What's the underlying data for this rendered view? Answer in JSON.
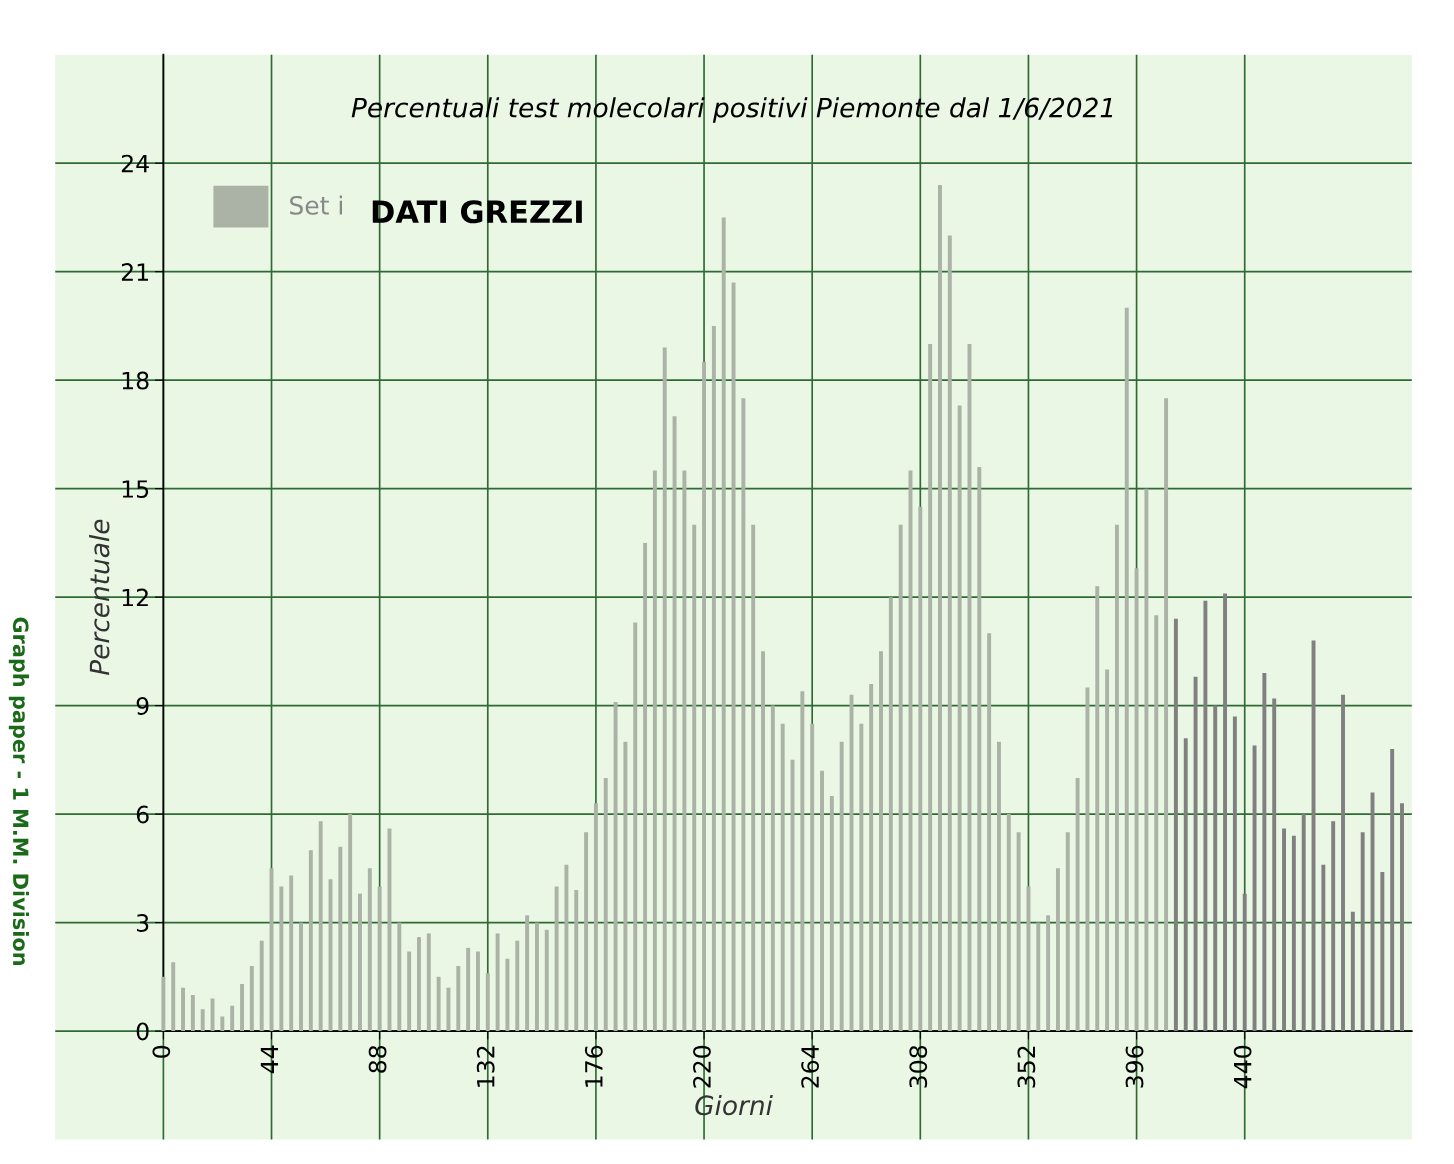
{
  "chart_data": {
    "type": "bar",
    "title": "Percentuali test molecolari positivi Piemonte dal 1/6/2021",
    "xlabel": "Giorni",
    "ylabel": "Percentuale",
    "annotations": [
      "DATI GREZZI",
      "Graph paper - 1 M.M. Division"
    ],
    "x": [
      0,
      4,
      8,
      12,
      16,
      20,
      24,
      28,
      32,
      36,
      40,
      44,
      48,
      52,
      56,
      60,
      64,
      68,
      72,
      76,
      80,
      84,
      88,
      92,
      96,
      100,
      104,
      108,
      112,
      116,
      120,
      124,
      128,
      132,
      136,
      140,
      144,
      148,
      152,
      156,
      160,
      164,
      168,
      172,
      176,
      180,
      184,
      188,
      192,
      196,
      200,
      204,
      208,
      212,
      216,
      220,
      224,
      228,
      232,
      236,
      240,
      244,
      248,
      252,
      256,
      260,
      264,
      268,
      272,
      276,
      280,
      284,
      288,
      292,
      296,
      300,
      304,
      308,
      312,
      316,
      320,
      324,
      328,
      332,
      336,
      340,
      344,
      348,
      352,
      356,
      360,
      364,
      368,
      372,
      376,
      380,
      384,
      388,
      392,
      396,
      400,
      404,
      408,
      412,
      416,
      420,
      424,
      428,
      432,
      436,
      440,
      444,
      448,
      452,
      456,
      460,
      464,
      468,
      472,
      476,
      480,
      484,
      488,
      492,
      496,
      500,
      504
    ],
    "series": [
      {
        "name": "Set i",
        "color": "#aab3a6",
        "values": [
          1.5,
          1.9,
          1.2,
          1.0,
          0.6,
          0.9,
          0.4,
          0.7,
          1.3,
          1.8,
          2.5,
          4.5,
          4.0,
          4.3,
          3.0,
          5.0,
          5.8,
          4.2,
          5.1,
          6.0,
          3.8,
          4.5,
          4.0,
          5.6,
          3.0,
          2.2,
          2.6,
          2.7,
          1.5,
          1.2,
          1.8,
          2.3,
          2.2,
          1.6,
          2.7,
          2.0,
          2.5,
          3.2,
          3.0,
          2.8,
          4.0,
          4.6,
          3.9,
          5.5,
          6.3,
          7.0,
          9.1,
          8.0,
          11.3,
          13.5,
          15.5,
          18.9,
          17.0,
          15.5,
          14.0,
          18.5,
          19.5,
          22.5,
          20.7,
          17.5,
          14.0,
          10.5,
          9.0,
          8.5,
          7.5,
          9.4,
          8.5,
          7.2,
          6.5,
          8.0,
          9.3,
          8.5,
          9.6,
          10.5,
          12.0,
          14.0,
          15.5,
          14.5,
          19.0,
          23.4,
          22.0,
          17.3,
          19.0,
          15.6,
          11.0,
          8.0,
          6.0,
          5.5,
          4.0,
          3.0,
          3.2,
          4.5,
          5.5,
          7.0,
          9.5,
          12.3,
          10.0,
          14.0,
          20.0,
          12.8,
          15.0,
          11.5,
          17.5,
          11.4,
          8.1,
          9.8,
          11.9,
          9.0,
          12.1,
          8.7,
          3.8,
          7.9,
          9.9,
          9.2,
          5.6,
          5.4,
          6.0,
          10.8,
          4.6,
          5.8,
          9.3,
          3.3,
          5.5,
          6.6,
          4.4,
          7.8,
          6.3
        ],
        "colors": [
          "#aab3a6",
          "#aab3a6",
          "#aab3a6",
          "#aab3a6",
          "#aab3a6",
          "#aab3a6",
          "#aab3a6",
          "#aab3a6",
          "#aab3a6",
          "#aab3a6",
          "#aab3a6",
          "#aab3a6",
          "#aab3a6",
          "#aab3a6",
          "#aab3a6",
          "#aab3a6",
          "#aab3a6",
          "#aab3a6",
          "#aab3a6",
          "#aab3a6",
          "#aab3a6",
          "#aab3a6",
          "#aab3a6",
          "#aab3a6",
          "#aab3a6",
          "#aab3a6",
          "#aab3a6",
          "#aab3a6",
          "#aab3a6",
          "#aab3a6",
          "#aab3a6",
          "#aab3a6",
          "#aab3a6",
          "#aab3a6",
          "#aab3a6",
          "#aab3a6",
          "#aab3a6",
          "#aab3a6",
          "#aab3a6",
          "#aab3a6",
          "#aab3a6",
          "#aab3a6",
          "#aab3a6",
          "#aab3a6",
          "#aab3a6",
          "#aab3a6",
          "#aab3a6",
          "#aab3a6",
          "#aab3a6",
          "#aab3a6",
          "#aab3a6",
          "#aab3a6",
          "#aab3a6",
          "#aab3a6",
          "#aab3a6",
          "#aab3a6",
          "#aab3a6",
          "#aab3a6",
          "#aab3a6",
          "#aab3a6",
          "#aab3a6",
          "#aab3a6",
          "#aab3a6",
          "#aab3a6",
          "#aab3a6",
          "#aab3a6",
          "#aab3a6",
          "#aab3a6",
          "#aab3a6",
          "#aab3a6",
          "#aab3a6",
          "#aab3a6",
          "#aab3a6",
          "#aab3a6",
          "#aab3a6",
          "#aab3a6",
          "#aab3a6",
          "#aab3a6",
          "#aab3a6",
          "#aab3a6",
          "#aab3a6",
          "#aab3a6",
          "#aab3a6",
          "#aab3a6",
          "#aab3a6",
          "#aab3a6",
          "#aab3a6",
          "#aab3a6",
          "#aab3a6",
          "#aab3a6",
          "#aab3a6",
          "#aab3a6",
          "#aab3a6",
          "#aab3a6",
          "#aab3a6",
          "#aab3a6",
          "#aab3a6",
          "#aab3a6",
          "#aab3a6",
          "#aab3a6",
          "#aab3a6",
          "#aab3a6",
          "#aab3a6",
          "#808080",
          "#808080",
          "#808080",
          "#808080",
          "#808080",
          "#808080",
          "#808080",
          "#808080",
          "#808080",
          "#808080",
          "#808080",
          "#808080",
          "#808080",
          "#808080",
          "#808080",
          "#808080",
          "#808080",
          "#808080",
          "#808080",
          "#808080",
          "#808080",
          "#808080",
          "#808080",
          "#808080"
        ]
      }
    ],
    "xlim": [
      -44,
      508
    ],
    "ylim": [
      -3,
      27
    ],
    "xticks": [
      0,
      44,
      88,
      132,
      176,
      220,
      264,
      308,
      352,
      396,
      440
    ],
    "yticks": [
      0,
      3,
      6,
      9,
      12,
      15,
      18,
      21,
      24
    ],
    "grid": true,
    "legend": "top left"
  }
}
